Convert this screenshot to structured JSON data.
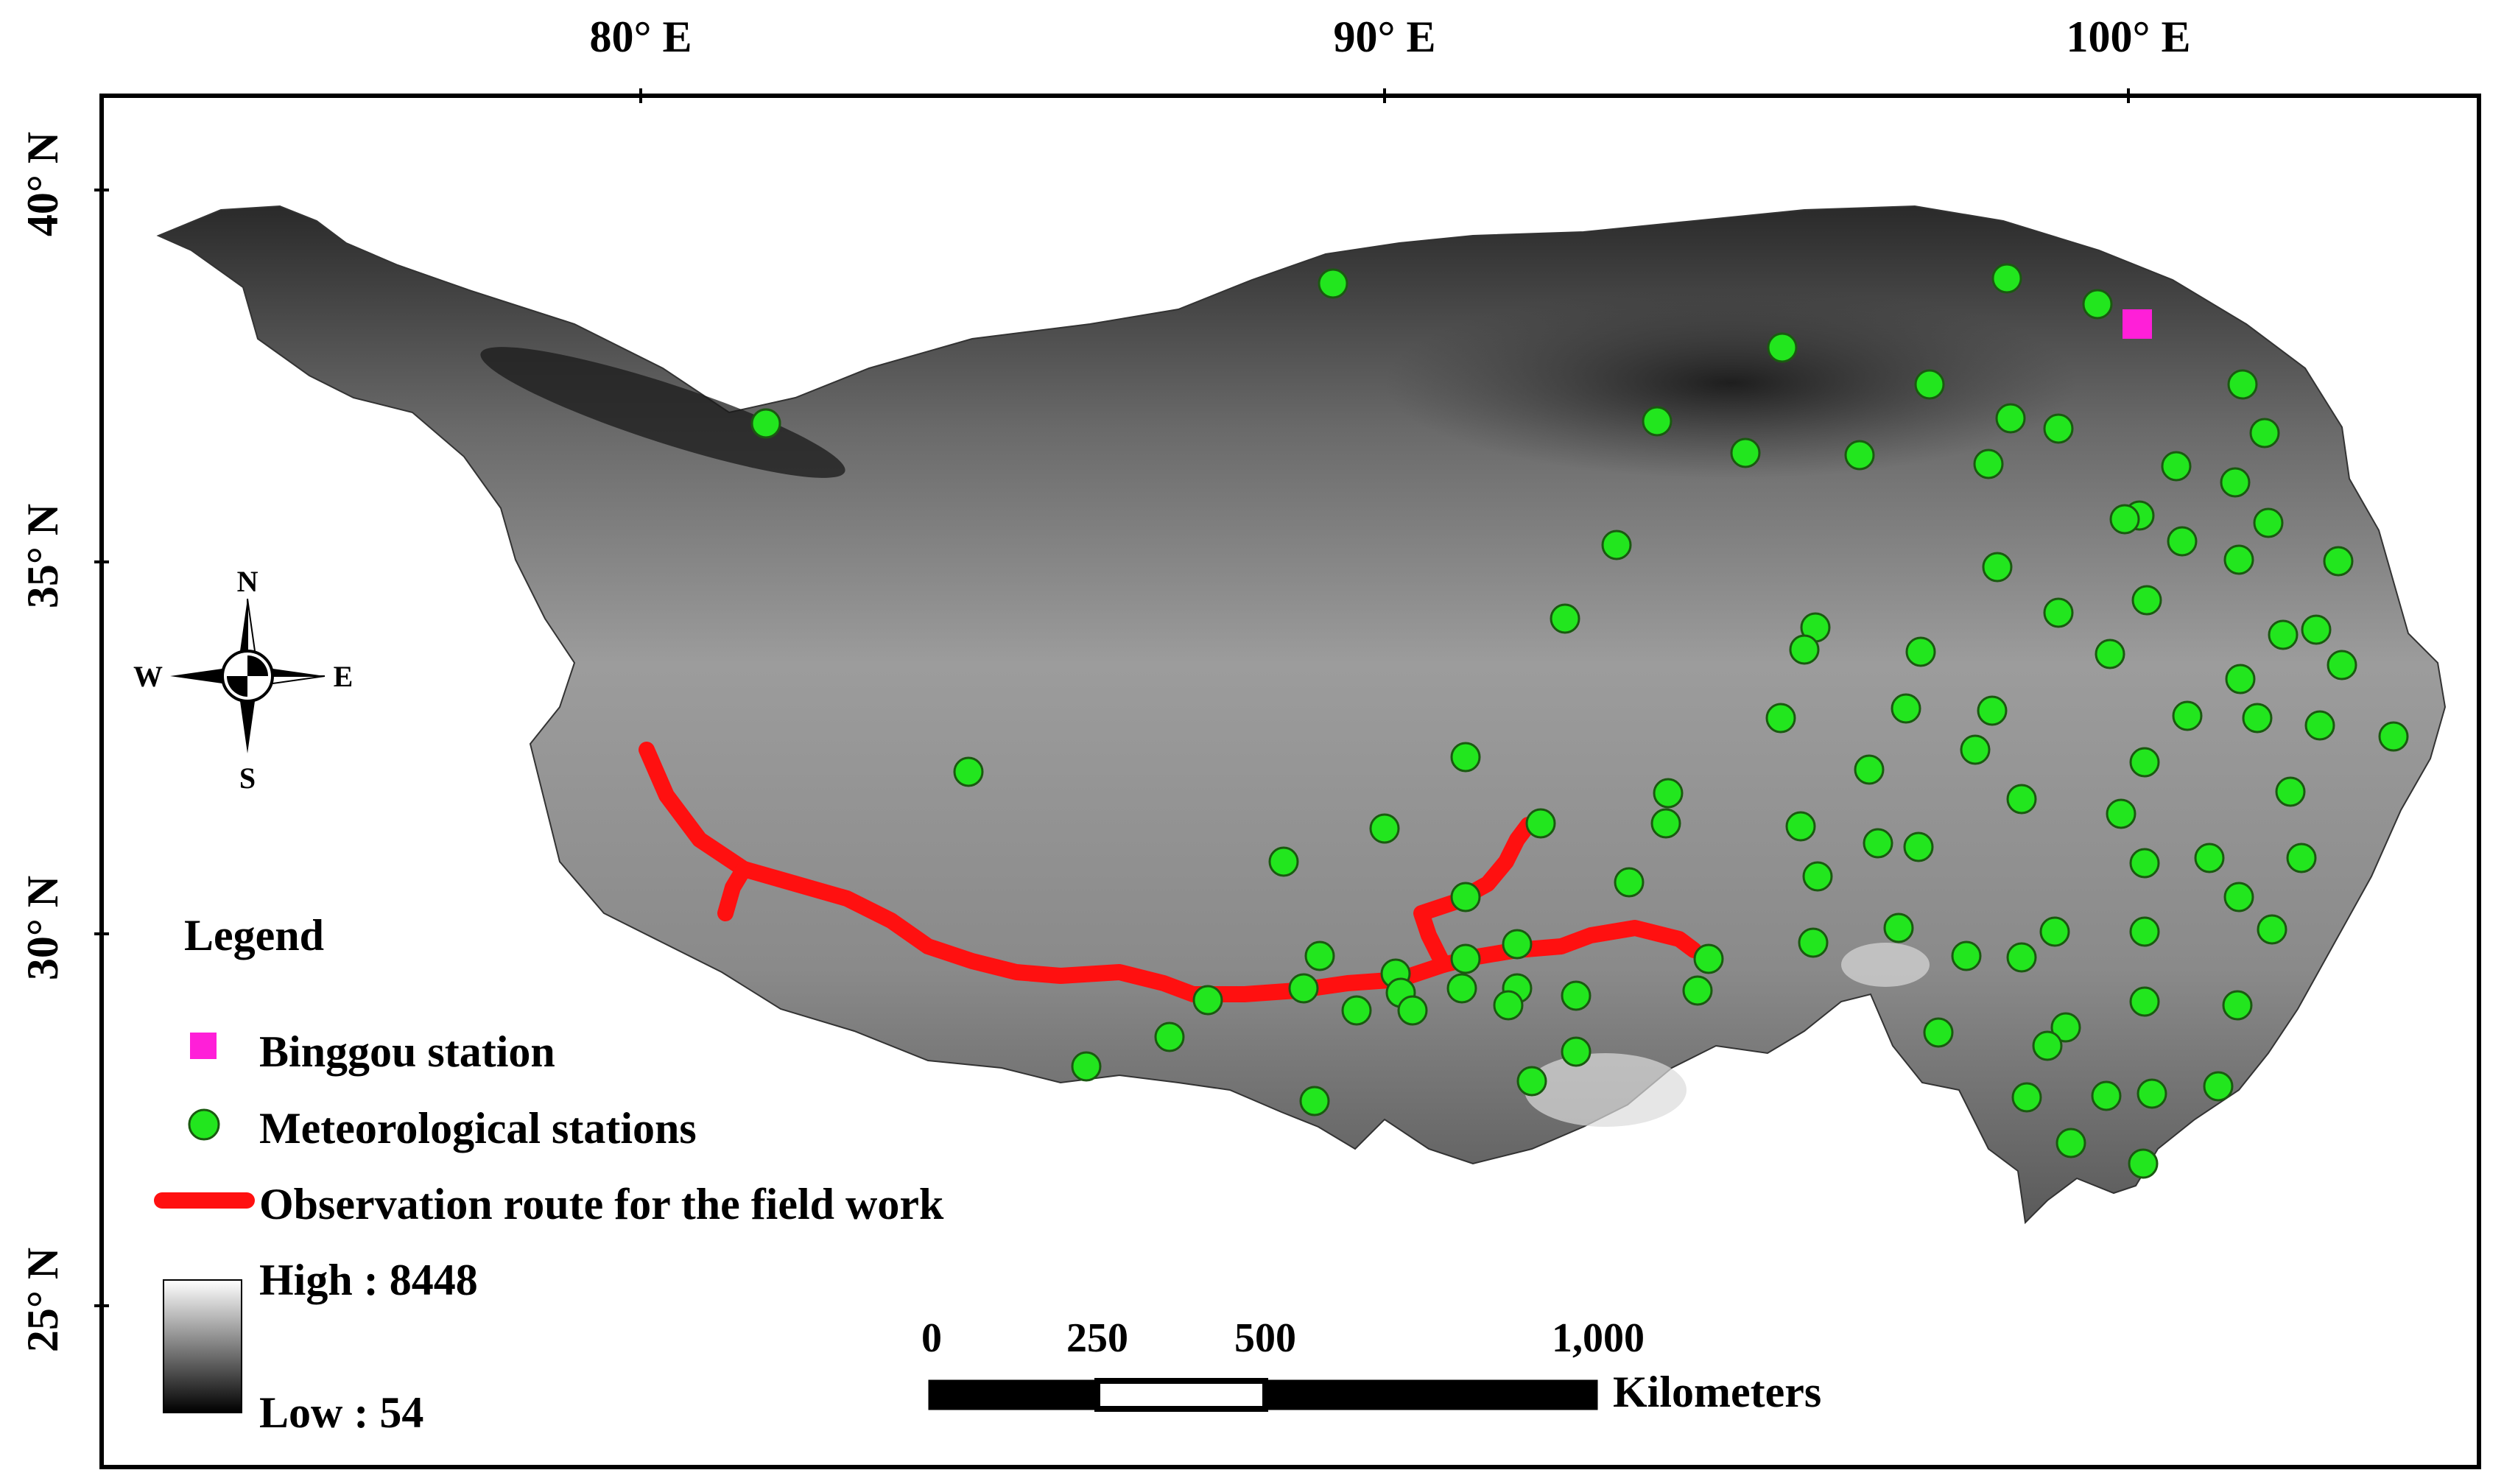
{
  "graticule": {
    "lon_labels": [
      "80° E",
      "90° E",
      "100° E"
    ],
    "lat_labels": [
      "40° N",
      "35° N",
      "30° N",
      "25° N"
    ]
  },
  "north_arrow": {
    "n": "N",
    "s": "S",
    "e": "E",
    "w": "W"
  },
  "legend": {
    "title": "Legend",
    "binggou_label": "Binggou station",
    "met_label": "Meteorological stations",
    "route_label": "Observation route for the field work",
    "elev_high": "High : 8448",
    "elev_low": "Low : 54"
  },
  "scale_bar": {
    "ticks": [
      "0",
      "250",
      "500",
      "1,000"
    ],
    "unit": "Kilometers"
  },
  "colors": {
    "station": "#22e61e",
    "binggou": "#ff1fd8",
    "route": "#ff1010"
  }
}
